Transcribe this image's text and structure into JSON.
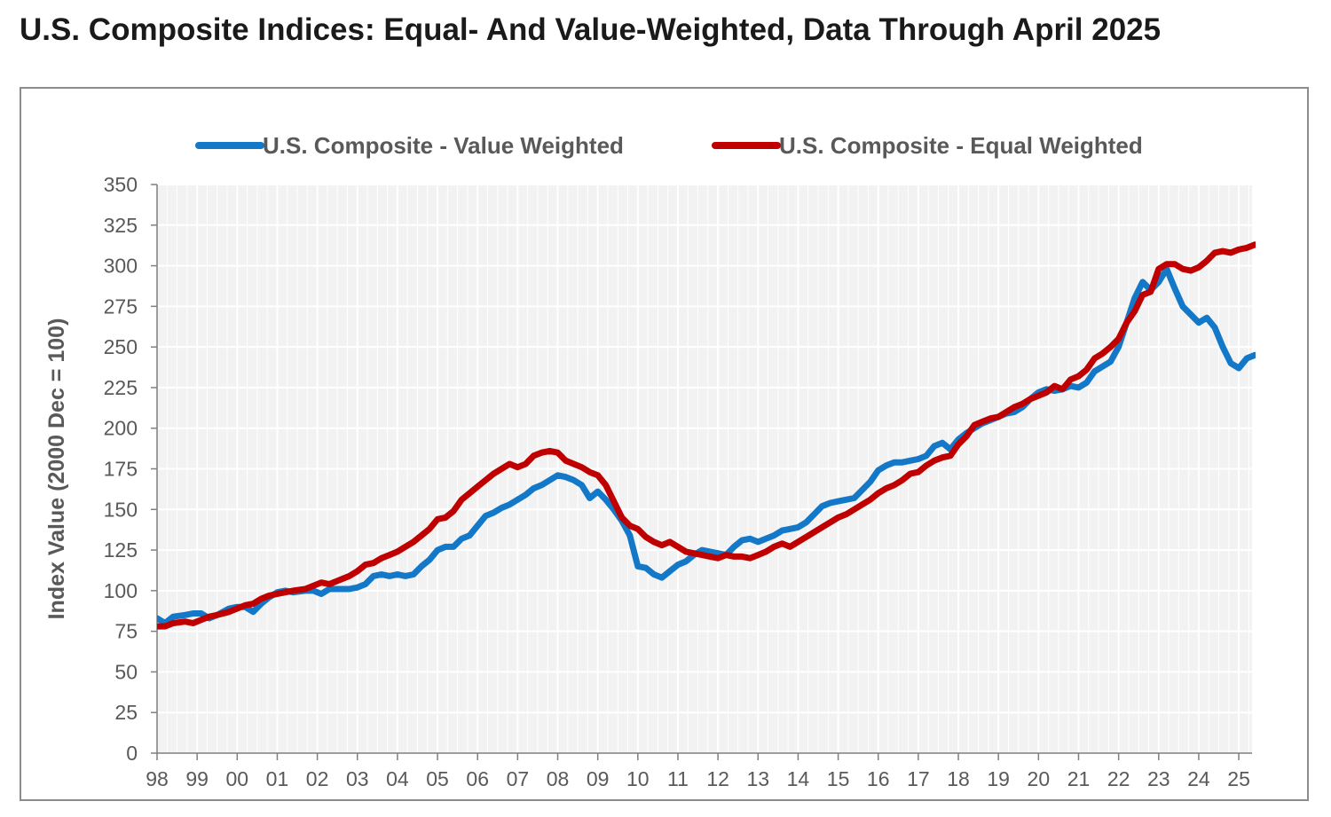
{
  "title": "U.S. Composite Indices: Equal- And Value-Weighted, Data Through April 2025",
  "colors": {
    "value_weighted": "#1478c8",
    "equal_weighted": "#c00000",
    "plot_bg": "#f2f2f2",
    "grid": "#ffffff",
    "text": "#595959"
  },
  "chart_data": {
    "type": "line",
    "title": "U.S. Composite Indices: Equal- And Value-Weighted, Data Through April 2025",
    "xlabel": "",
    "ylabel": "Index Value (2000 Dec = 100)",
    "xlim": [
      1998.0,
      2025.33
    ],
    "ylim": [
      0,
      350
    ],
    "x_tick_labels": [
      "98",
      "99",
      "00",
      "01",
      "02",
      "03",
      "04",
      "05",
      "06",
      "07",
      "08",
      "09",
      "10",
      "11",
      "12",
      "13",
      "14",
      "15",
      "16",
      "17",
      "18",
      "19",
      "20",
      "21",
      "22",
      "23",
      "24",
      "25"
    ],
    "x_tick_values": [
      1998,
      1999,
      2000,
      2001,
      2002,
      2003,
      2004,
      2005,
      2006,
      2007,
      2008,
      2009,
      2010,
      2011,
      2012,
      2013,
      2014,
      2015,
      2016,
      2017,
      2018,
      2019,
      2020,
      2021,
      2022,
      2023,
      2024,
      2025
    ],
    "y_ticks": [
      0,
      25,
      50,
      75,
      100,
      125,
      150,
      175,
      200,
      225,
      250,
      275,
      300,
      325,
      350
    ],
    "grid": true,
    "legend_position": "top",
    "series": [
      {
        "name": "U.S. Composite - Value Weighted",
        "color": "#1478c8",
        "points": [
          [
            1998.0,
            83
          ],
          [
            1998.2,
            80
          ],
          [
            1998.4,
            84
          ],
          [
            1998.7,
            85
          ],
          [
            1998.9,
            86
          ],
          [
            1999.1,
            86
          ],
          [
            1999.3,
            83
          ],
          [
            1999.5,
            85
          ],
          [
            1999.8,
            89
          ],
          [
            2000.0,
            90
          ],
          [
            2000.2,
            90
          ],
          [
            2000.4,
            87
          ],
          [
            2000.6,
            92
          ],
          [
            2000.8,
            96
          ],
          [
            2001.0,
            99
          ],
          [
            2001.2,
            100
          ],
          [
            2001.4,
            99
          ],
          [
            2001.7,
            100
          ],
          [
            2001.9,
            100
          ],
          [
            2002.1,
            98
          ],
          [
            2002.3,
            101
          ],
          [
            2002.6,
            101
          ],
          [
            2002.8,
            101
          ],
          [
            2003.0,
            102
          ],
          [
            2003.2,
            104
          ],
          [
            2003.4,
            109
          ],
          [
            2003.6,
            110
          ],
          [
            2003.8,
            109
          ],
          [
            2004.0,
            110
          ],
          [
            2004.2,
            109
          ],
          [
            2004.4,
            110
          ],
          [
            2004.6,
            115
          ],
          [
            2004.8,
            119
          ],
          [
            2005.0,
            125
          ],
          [
            2005.2,
            127
          ],
          [
            2005.4,
            127
          ],
          [
            2005.6,
            132
          ],
          [
            2005.8,
            134
          ],
          [
            2006.0,
            140
          ],
          [
            2006.2,
            146
          ],
          [
            2006.4,
            148
          ],
          [
            2006.6,
            151
          ],
          [
            2006.8,
            153
          ],
          [
            2007.0,
            156
          ],
          [
            2007.2,
            159
          ],
          [
            2007.4,
            163
          ],
          [
            2007.6,
            165
          ],
          [
            2007.8,
            168
          ],
          [
            2008.0,
            171
          ],
          [
            2008.2,
            170
          ],
          [
            2008.4,
            168
          ],
          [
            2008.6,
            165
          ],
          [
            2008.8,
            157
          ],
          [
            2009.0,
            161
          ],
          [
            2009.2,
            156
          ],
          [
            2009.4,
            150
          ],
          [
            2009.6,
            143
          ],
          [
            2009.8,
            134
          ],
          [
            2010.0,
            115
          ],
          [
            2010.2,
            114
          ],
          [
            2010.4,
            110
          ],
          [
            2010.6,
            108
          ],
          [
            2010.8,
            112
          ],
          [
            2011.0,
            116
          ],
          [
            2011.2,
            118
          ],
          [
            2011.4,
            122
          ],
          [
            2011.6,
            125
          ],
          [
            2011.8,
            124
          ],
          [
            2012.0,
            123
          ],
          [
            2012.2,
            122
          ],
          [
            2012.4,
            127
          ],
          [
            2012.6,
            131
          ],
          [
            2012.8,
            132
          ],
          [
            2013.0,
            130
          ],
          [
            2013.2,
            132
          ],
          [
            2013.4,
            134
          ],
          [
            2013.6,
            137
          ],
          [
            2013.8,
            138
          ],
          [
            2014.0,
            139
          ],
          [
            2014.2,
            142
          ],
          [
            2014.4,
            147
          ],
          [
            2014.6,
            152
          ],
          [
            2014.8,
            154
          ],
          [
            2015.0,
            155
          ],
          [
            2015.2,
            156
          ],
          [
            2015.4,
            157
          ],
          [
            2015.6,
            162
          ],
          [
            2015.8,
            167
          ],
          [
            2016.0,
            174
          ],
          [
            2016.2,
            177
          ],
          [
            2016.4,
            179
          ],
          [
            2016.6,
            179
          ],
          [
            2016.8,
            180
          ],
          [
            2017.0,
            181
          ],
          [
            2017.2,
            183
          ],
          [
            2017.4,
            189
          ],
          [
            2017.6,
            191
          ],
          [
            2017.8,
            187
          ],
          [
            2018.0,
            193
          ],
          [
            2018.2,
            197
          ],
          [
            2018.4,
            200
          ],
          [
            2018.6,
            203
          ],
          [
            2018.8,
            205
          ],
          [
            2019.0,
            207
          ],
          [
            2019.2,
            209
          ],
          [
            2019.4,
            210
          ],
          [
            2019.6,
            213
          ],
          [
            2019.8,
            218
          ],
          [
            2020.0,
            222
          ],
          [
            2020.2,
            224
          ],
          [
            2020.4,
            223
          ],
          [
            2020.6,
            224
          ],
          [
            2020.8,
            226
          ],
          [
            2021.0,
            225
          ],
          [
            2021.2,
            228
          ],
          [
            2021.4,
            235
          ],
          [
            2021.6,
            238
          ],
          [
            2021.8,
            241
          ],
          [
            2022.0,
            250
          ],
          [
            2022.2,
            265
          ],
          [
            2022.4,
            280
          ],
          [
            2022.6,
            290
          ],
          [
            2022.8,
            285
          ],
          [
            2023.0,
            290
          ],
          [
            2023.2,
            298
          ],
          [
            2023.4,
            286
          ],
          [
            2023.6,
            275
          ],
          [
            2023.8,
            270
          ],
          [
            2024.0,
            265
          ],
          [
            2024.2,
            268
          ],
          [
            2024.4,
            262
          ],
          [
            2024.6,
            250
          ],
          [
            2024.8,
            240
          ],
          [
            2025.0,
            237
          ],
          [
            2025.2,
            243
          ],
          [
            2025.4,
            245
          ],
          [
            2025.6,
            244
          ],
          [
            2025.8,
            243
          ],
          [
            2026.0,
            242
          ]
        ]
      },
      {
        "name": "U.S. Composite - Equal Weighted",
        "color": "#c00000",
        "points": [
          [
            1998.0,
            78
          ],
          [
            1998.2,
            78
          ],
          [
            1998.4,
            80
          ],
          [
            1998.7,
            81
          ],
          [
            1998.9,
            80
          ],
          [
            1999.1,
            82
          ],
          [
            1999.3,
            84
          ],
          [
            1999.5,
            85
          ],
          [
            1999.8,
            87
          ],
          [
            2000.0,
            89
          ],
          [
            2000.2,
            91
          ],
          [
            2000.4,
            92
          ],
          [
            2000.6,
            95
          ],
          [
            2000.8,
            97
          ],
          [
            2001.0,
            98
          ],
          [
            2001.2,
            99
          ],
          [
            2001.4,
            100
          ],
          [
            2001.7,
            101
          ],
          [
            2001.9,
            103
          ],
          [
            2002.1,
            105
          ],
          [
            2002.3,
            104
          ],
          [
            2002.6,
            107
          ],
          [
            2002.8,
            109
          ],
          [
            2003.0,
            112
          ],
          [
            2003.2,
            116
          ],
          [
            2003.4,
            117
          ],
          [
            2003.6,
            120
          ],
          [
            2003.8,
            122
          ],
          [
            2004.0,
            124
          ],
          [
            2004.2,
            127
          ],
          [
            2004.4,
            130
          ],
          [
            2004.6,
            134
          ],
          [
            2004.8,
            138
          ],
          [
            2005.0,
            144
          ],
          [
            2005.2,
            145
          ],
          [
            2005.4,
            149
          ],
          [
            2005.6,
            156
          ],
          [
            2005.8,
            160
          ],
          [
            2006.0,
            164
          ],
          [
            2006.2,
            168
          ],
          [
            2006.4,
            172
          ],
          [
            2006.6,
            175
          ],
          [
            2006.8,
            178
          ],
          [
            2007.0,
            176
          ],
          [
            2007.2,
            178
          ],
          [
            2007.4,
            183
          ],
          [
            2007.6,
            185
          ],
          [
            2007.8,
            186
          ],
          [
            2008.0,
            185
          ],
          [
            2008.2,
            180
          ],
          [
            2008.4,
            178
          ],
          [
            2008.6,
            176
          ],
          [
            2008.8,
            173
          ],
          [
            2009.0,
            171
          ],
          [
            2009.2,
            165
          ],
          [
            2009.4,
            155
          ],
          [
            2009.6,
            145
          ],
          [
            2009.8,
            140
          ],
          [
            2010.0,
            138
          ],
          [
            2010.2,
            133
          ],
          [
            2010.4,
            130
          ],
          [
            2010.6,
            128
          ],
          [
            2010.8,
            130
          ],
          [
            2011.0,
            127
          ],
          [
            2011.2,
            124
          ],
          [
            2011.4,
            123
          ],
          [
            2011.6,
            122
          ],
          [
            2011.8,
            121
          ],
          [
            2012.0,
            120
          ],
          [
            2012.2,
            122
          ],
          [
            2012.4,
            121
          ],
          [
            2012.6,
            121
          ],
          [
            2012.8,
            120
          ],
          [
            2013.0,
            122
          ],
          [
            2013.2,
            124
          ],
          [
            2013.4,
            127
          ],
          [
            2013.6,
            129
          ],
          [
            2013.8,
            127
          ],
          [
            2014.0,
            130
          ],
          [
            2014.2,
            133
          ],
          [
            2014.4,
            136
          ],
          [
            2014.6,
            139
          ],
          [
            2014.8,
            142
          ],
          [
            2015.0,
            145
          ],
          [
            2015.2,
            147
          ],
          [
            2015.4,
            150
          ],
          [
            2015.6,
            153
          ],
          [
            2015.8,
            156
          ],
          [
            2016.0,
            160
          ],
          [
            2016.2,
            163
          ],
          [
            2016.4,
            165
          ],
          [
            2016.6,
            168
          ],
          [
            2016.8,
            172
          ],
          [
            2017.0,
            173
          ],
          [
            2017.2,
            177
          ],
          [
            2017.4,
            180
          ],
          [
            2017.6,
            182
          ],
          [
            2017.8,
            183
          ],
          [
            2018.0,
            190
          ],
          [
            2018.2,
            195
          ],
          [
            2018.4,
            202
          ],
          [
            2018.6,
            204
          ],
          [
            2018.8,
            206
          ],
          [
            2019.0,
            207
          ],
          [
            2019.2,
            210
          ],
          [
            2019.4,
            213
          ],
          [
            2019.6,
            215
          ],
          [
            2019.8,
            218
          ],
          [
            2020.0,
            220
          ],
          [
            2020.2,
            222
          ],
          [
            2020.4,
            226
          ],
          [
            2020.6,
            224
          ],
          [
            2020.8,
            230
          ],
          [
            2021.0,
            232
          ],
          [
            2021.2,
            236
          ],
          [
            2021.4,
            243
          ],
          [
            2021.6,
            246
          ],
          [
            2021.8,
            250
          ],
          [
            2022.0,
            255
          ],
          [
            2022.2,
            265
          ],
          [
            2022.4,
            272
          ],
          [
            2022.6,
            282
          ],
          [
            2022.8,
            284
          ],
          [
            2023.0,
            298
          ],
          [
            2023.2,
            301
          ],
          [
            2023.4,
            301
          ],
          [
            2023.6,
            298
          ],
          [
            2023.8,
            297
          ],
          [
            2024.0,
            299
          ],
          [
            2024.2,
            303
          ],
          [
            2024.4,
            308
          ],
          [
            2024.6,
            309
          ],
          [
            2024.8,
            308
          ],
          [
            2025.0,
            310
          ],
          [
            2025.2,
            311
          ],
          [
            2025.4,
            313
          ],
          [
            2025.6,
            312
          ],
          [
            2025.8,
            314
          ],
          [
            2026.0,
            315
          ]
        ]
      }
    ]
  }
}
